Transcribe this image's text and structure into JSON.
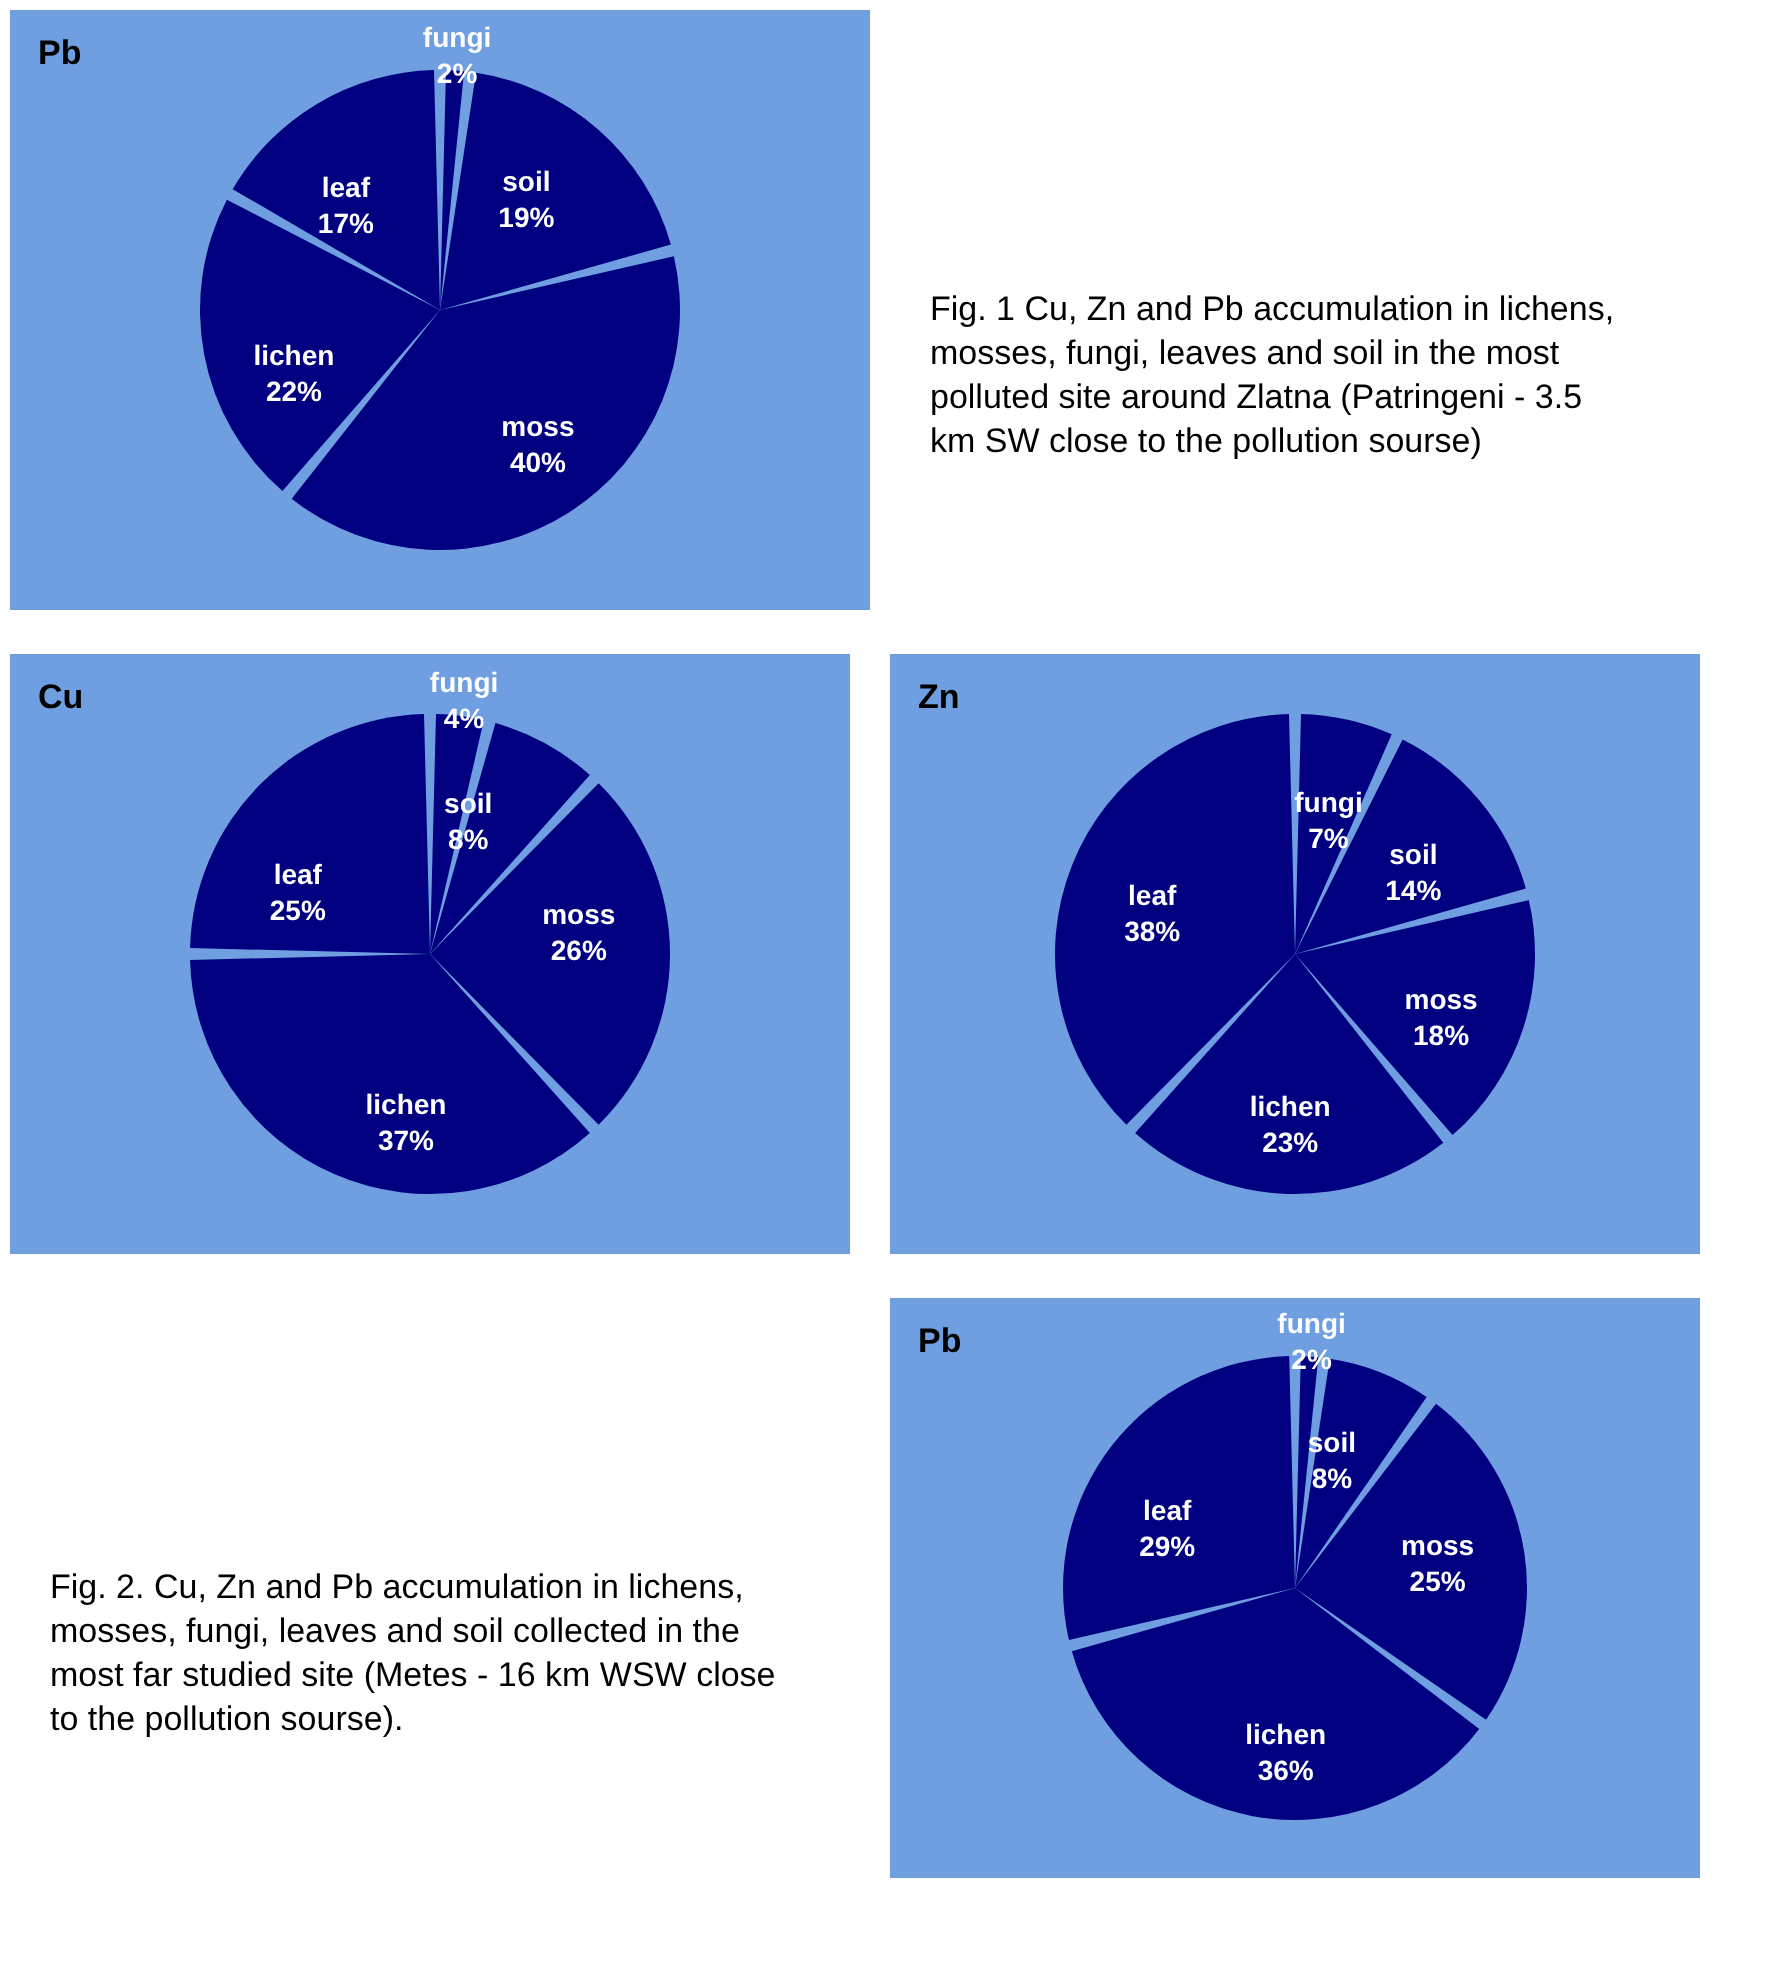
{
  "chart_data": [
    {
      "type": "pie",
      "title": "Pb",
      "categories": [
        "fungi",
        "soil",
        "moss",
        "lichen",
        "leaf"
      ],
      "values": [
        2,
        19,
        40,
        22,
        17
      ],
      "value_labels": [
        "2%",
        "19%",
        "40%",
        "22%",
        "17%"
      ],
      "colors": [
        "#000080",
        "#000080",
        "#000080",
        "#000080",
        "#000080"
      ],
      "annotations": [
        "Fig. 1 Cu, Zn and Pb accumulation in lichens, mosses, fungi, leaves and soil in the most polluted site around Zlatna (Patringeni - 3.5 km SW close to the pollution sourse)"
      ]
    },
    {
      "type": "pie",
      "title": "Cu",
      "categories": [
        "fungi",
        "soil",
        "moss",
        "lichen",
        "leaf"
      ],
      "values": [
        4,
        8,
        26,
        37,
        25
      ],
      "value_labels": [
        "4%",
        "8%",
        "26%",
        "37%",
        "25%"
      ],
      "colors": [
        "#000080",
        "#000080",
        "#000080",
        "#000080",
        "#000080"
      ]
    },
    {
      "type": "pie",
      "title": "Zn",
      "categories": [
        "fungi",
        "soil",
        "moss",
        "lichen",
        "leaf"
      ],
      "values": [
        7,
        14,
        18,
        23,
        38
      ],
      "value_labels": [
        "7%",
        "14%",
        "18%",
        "23%",
        "38%"
      ],
      "colors": [
        "#000080",
        "#000080",
        "#000080",
        "#000080",
        "#000080"
      ]
    },
    {
      "type": "pie",
      "title": "Pb",
      "categories": [
        "fungi",
        "soil",
        "moss",
        "lichen",
        "leaf"
      ],
      "values": [
        2,
        8,
        25,
        36,
        29
      ],
      "value_labels": [
        "2%",
        "8%",
        "25%",
        "36%",
        "29%"
      ],
      "colors": [
        "#000080",
        "#000080",
        "#000080",
        "#000080",
        "#000080"
      ],
      "annotations": [
        "Fig. 2. Cu, Zn and Pb accumulation in lichens, mosses, fungi, leaves and soil collected in the most far studied site (Metes - 16 km WSW close to  the pollution sourse)."
      ]
    }
  ]
}
